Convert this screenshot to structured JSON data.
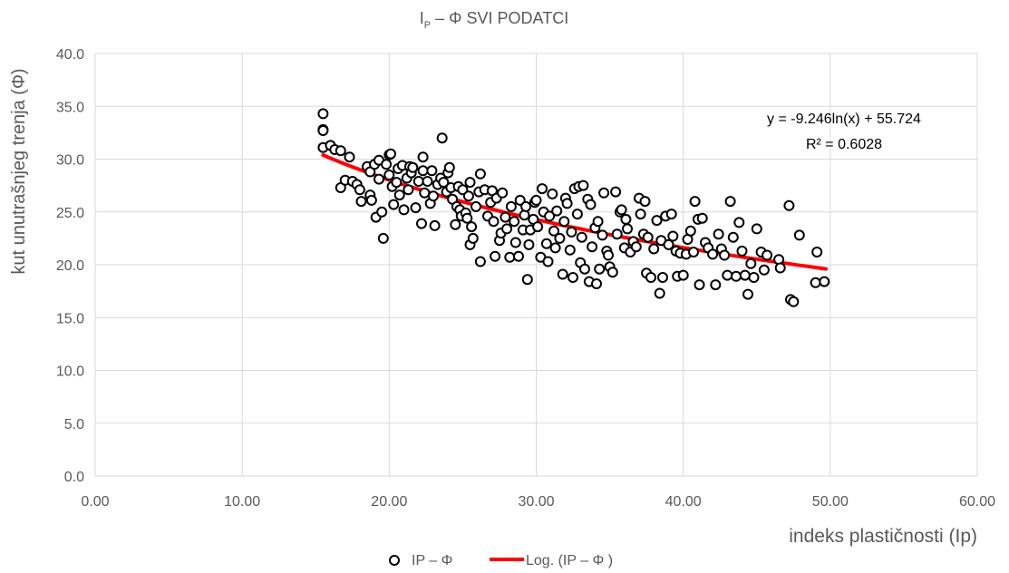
{
  "chart_data": {
    "type": "scatter",
    "title": "I",
    "title_sub": "P",
    "title_rest": " – Φ  SVI PODATCI",
    "xlabel": "indeks plastičnosti (Ip)",
    "ylabel": "kut unutrašnjeg trenja (Φ)",
    "xlim": [
      0,
      60
    ],
    "ylim": [
      0,
      40
    ],
    "x_ticks": [
      0,
      10,
      20,
      30,
      40,
      50,
      60
    ],
    "y_ticks": [
      0,
      5,
      10,
      15,
      20,
      25,
      30,
      35,
      40
    ],
    "x_tick_labels": [
      "0.00",
      "10.00",
      "20.00",
      "30.00",
      "40.00",
      "50.00",
      "60.00"
    ],
    "y_tick_labels": [
      "0.0",
      "5.0",
      "10.0",
      "15.0",
      "20.0",
      "25.0",
      "30.0",
      "35.0",
      "40.0"
    ],
    "grid": true,
    "legend_position": "bottom",
    "series": [
      {
        "name": "IP – Φ",
        "kind": "scatter",
        "marker_color": "#000000",
        "points": [
          [
            15.5,
            34.3
          ],
          [
            15.5,
            32.8
          ],
          [
            15.5,
            32.7
          ],
          [
            15.5,
            31.1
          ],
          [
            16.0,
            31.3
          ],
          [
            16.3,
            30.9
          ],
          [
            16.7,
            30.8
          ],
          [
            16.7,
            27.3
          ],
          [
            17.0,
            28.0
          ],
          [
            17.3,
            30.2
          ],
          [
            17.5,
            27.9
          ],
          [
            17.8,
            27.6
          ],
          [
            18.0,
            27.1
          ],
          [
            18.1,
            26.0
          ],
          [
            18.5,
            29.3
          ],
          [
            18.7,
            28.8
          ],
          [
            18.7,
            26.6
          ],
          [
            18.8,
            26.1
          ],
          [
            19.0,
            29.5
          ],
          [
            19.1,
            24.5
          ],
          [
            19.3,
            29.9
          ],
          [
            19.3,
            28.1
          ],
          [
            19.5,
            25.0
          ],
          [
            19.6,
            22.5
          ],
          [
            19.8,
            29.5
          ],
          [
            20.0,
            30.4
          ],
          [
            20.0,
            28.5
          ],
          [
            20.1,
            30.5
          ],
          [
            20.2,
            27.4
          ],
          [
            20.3,
            25.7
          ],
          [
            20.5,
            27.8
          ],
          [
            20.6,
            29.1
          ],
          [
            20.7,
            26.6
          ],
          [
            20.9,
            29.4
          ],
          [
            21.0,
            25.2
          ],
          [
            21.2,
            28.2
          ],
          [
            21.3,
            27.1
          ],
          [
            21.4,
            29.3
          ],
          [
            21.5,
            28.7
          ],
          [
            21.6,
            29.2
          ],
          [
            21.8,
            25.4
          ],
          [
            22.0,
            27.9
          ],
          [
            22.2,
            23.9
          ],
          [
            22.3,
            30.2
          ],
          [
            22.3,
            28.9
          ],
          [
            22.4,
            26.8
          ],
          [
            22.6,
            27.9
          ],
          [
            22.8,
            25.8
          ],
          [
            22.9,
            28.9
          ],
          [
            23.0,
            26.5
          ],
          [
            23.1,
            23.7
          ],
          [
            23.3,
            27.6
          ],
          [
            23.5,
            28.2
          ],
          [
            23.6,
            32.0
          ],
          [
            23.7,
            27.8
          ],
          [
            23.9,
            26.9
          ],
          [
            24.0,
            28.7
          ],
          [
            24.1,
            29.2
          ],
          [
            24.2,
            27.3
          ],
          [
            24.3,
            26.2
          ],
          [
            24.5,
            23.8
          ],
          [
            24.6,
            25.5
          ],
          [
            24.7,
            27.4
          ],
          [
            24.8,
            25.2
          ],
          [
            24.9,
            24.6
          ],
          [
            25.0,
            27.1
          ],
          [
            25.2,
            24.9
          ],
          [
            25.3,
            24.4
          ],
          [
            25.4,
            26.5
          ],
          [
            25.5,
            21.9
          ],
          [
            25.5,
            27.8
          ],
          [
            25.6,
            23.6
          ],
          [
            25.7,
            22.5
          ],
          [
            25.9,
            25.5
          ],
          [
            26.1,
            26.9
          ],
          [
            26.2,
            28.6
          ],
          [
            26.2,
            20.3
          ],
          [
            26.5,
            27.1
          ],
          [
            26.7,
            24.6
          ],
          [
            26.9,
            25.9
          ],
          [
            27.0,
            27.0
          ],
          [
            27.1,
            24.1
          ],
          [
            27.2,
            20.8
          ],
          [
            27.3,
            26.3
          ],
          [
            27.5,
            22.3
          ],
          [
            27.6,
            23.0
          ],
          [
            27.7,
            26.8
          ],
          [
            27.9,
            24.5
          ],
          [
            28.0,
            23.4
          ],
          [
            28.2,
            20.7
          ],
          [
            28.3,
            25.5
          ],
          [
            28.5,
            24.1
          ],
          [
            28.6,
            22.1
          ],
          [
            28.8,
            20.8
          ],
          [
            28.9,
            26.1
          ],
          [
            29.1,
            23.3
          ],
          [
            29.2,
            24.7
          ],
          [
            29.3,
            25.5
          ],
          [
            29.4,
            18.6
          ],
          [
            29.5,
            21.9
          ],
          [
            29.6,
            23.3
          ],
          [
            29.8,
            24.3
          ],
          [
            29.9,
            25.9
          ],
          [
            30.0,
            26.1
          ],
          [
            30.1,
            23.6
          ],
          [
            30.3,
            20.7
          ],
          [
            30.4,
            27.2
          ],
          [
            30.5,
            25.0
          ],
          [
            30.7,
            22.0
          ],
          [
            30.8,
            20.3
          ],
          [
            30.9,
            24.6
          ],
          [
            31.1,
            26.7
          ],
          [
            31.2,
            23.2
          ],
          [
            31.3,
            21.6
          ],
          [
            31.4,
            25.1
          ],
          [
            31.6,
            22.5
          ],
          [
            31.8,
            19.1
          ],
          [
            31.9,
            24.1
          ],
          [
            32.0,
            26.3
          ],
          [
            32.1,
            25.8
          ],
          [
            32.3,
            21.4
          ],
          [
            32.4,
            23.1
          ],
          [
            32.5,
            18.8
          ],
          [
            32.6,
            27.2
          ],
          [
            32.8,
            24.8
          ],
          [
            32.9,
            27.4
          ],
          [
            33.0,
            20.2
          ],
          [
            33.1,
            22.6
          ],
          [
            33.2,
            27.5
          ],
          [
            33.3,
            19.6
          ],
          [
            33.5,
            26.2
          ],
          [
            33.6,
            18.4
          ],
          [
            33.7,
            25.7
          ],
          [
            33.8,
            21.7
          ],
          [
            34.0,
            23.5
          ],
          [
            34.1,
            18.2
          ],
          [
            34.2,
            24.1
          ],
          [
            34.3,
            19.6
          ],
          [
            34.5,
            22.8
          ],
          [
            34.6,
            26.8
          ],
          [
            34.8,
            21.3
          ],
          [
            34.9,
            20.9
          ],
          [
            35.0,
            19.8
          ],
          [
            35.2,
            19.3
          ],
          [
            35.4,
            26.9
          ],
          [
            35.5,
            22.9
          ],
          [
            35.7,
            25.0
          ],
          [
            35.8,
            25.2
          ],
          [
            36.0,
            21.6
          ],
          [
            36.1,
            24.3
          ],
          [
            36.2,
            23.4
          ],
          [
            36.4,
            21.2
          ],
          [
            36.6,
            22.2
          ],
          [
            36.8,
            21.7
          ],
          [
            37.0,
            26.3
          ],
          [
            37.1,
            24.8
          ],
          [
            37.3,
            22.9
          ],
          [
            37.4,
            26.0
          ],
          [
            37.5,
            19.2
          ],
          [
            37.6,
            22.6
          ],
          [
            37.8,
            18.8
          ],
          [
            38.0,
            21.5
          ],
          [
            38.2,
            24.2
          ],
          [
            38.4,
            17.3
          ],
          [
            38.5,
            22.3
          ],
          [
            38.6,
            18.8
          ],
          [
            38.8,
            24.6
          ],
          [
            39.0,
            21.9
          ],
          [
            39.2,
            24.8
          ],
          [
            39.3,
            22.7
          ],
          [
            39.5,
            21.3
          ],
          [
            39.6,
            18.9
          ],
          [
            39.8,
            21.1
          ],
          [
            40.0,
            19.0
          ],
          [
            40.2,
            21.0
          ],
          [
            40.3,
            22.4
          ],
          [
            40.5,
            23.2
          ],
          [
            40.7,
            21.2
          ],
          [
            40.8,
            26.0
          ],
          [
            41.0,
            24.3
          ],
          [
            41.1,
            18.1
          ],
          [
            41.3,
            24.4
          ],
          [
            41.5,
            22.1
          ],
          [
            41.7,
            21.6
          ],
          [
            42.0,
            21.0
          ],
          [
            42.2,
            18.1
          ],
          [
            42.4,
            22.9
          ],
          [
            42.6,
            21.5
          ],
          [
            42.8,
            20.9
          ],
          [
            43.0,
            19.0
          ],
          [
            43.2,
            26.0
          ],
          [
            43.4,
            22.6
          ],
          [
            43.6,
            18.9
          ],
          [
            43.8,
            24.0
          ],
          [
            44.0,
            21.3
          ],
          [
            44.2,
            19.0
          ],
          [
            44.4,
            17.2
          ],
          [
            44.6,
            20.1
          ],
          [
            44.8,
            18.8
          ],
          [
            45.0,
            23.4
          ],
          [
            45.3,
            21.2
          ],
          [
            45.5,
            19.5
          ],
          [
            45.7,
            20.9
          ],
          [
            46.5,
            20.5
          ],
          [
            46.6,
            19.7
          ],
          [
            47.2,
            25.6
          ],
          [
            47.3,
            16.7
          ],
          [
            47.5,
            16.5
          ],
          [
            47.9,
            22.8
          ],
          [
            49.0,
            18.3
          ],
          [
            49.1,
            21.2
          ],
          [
            49.6,
            18.4
          ]
        ]
      },
      {
        "name": "Log. (IP – Φ )",
        "kind": "trendline",
        "line_color": "#ff0000",
        "equation": "y = -9.246ln(x) + 55.724",
        "r_squared": "R² = 0.6028",
        "coef_a": -9.246,
        "coef_b": 55.724,
        "x_range": [
          15.5,
          49.7
        ]
      }
    ]
  }
}
